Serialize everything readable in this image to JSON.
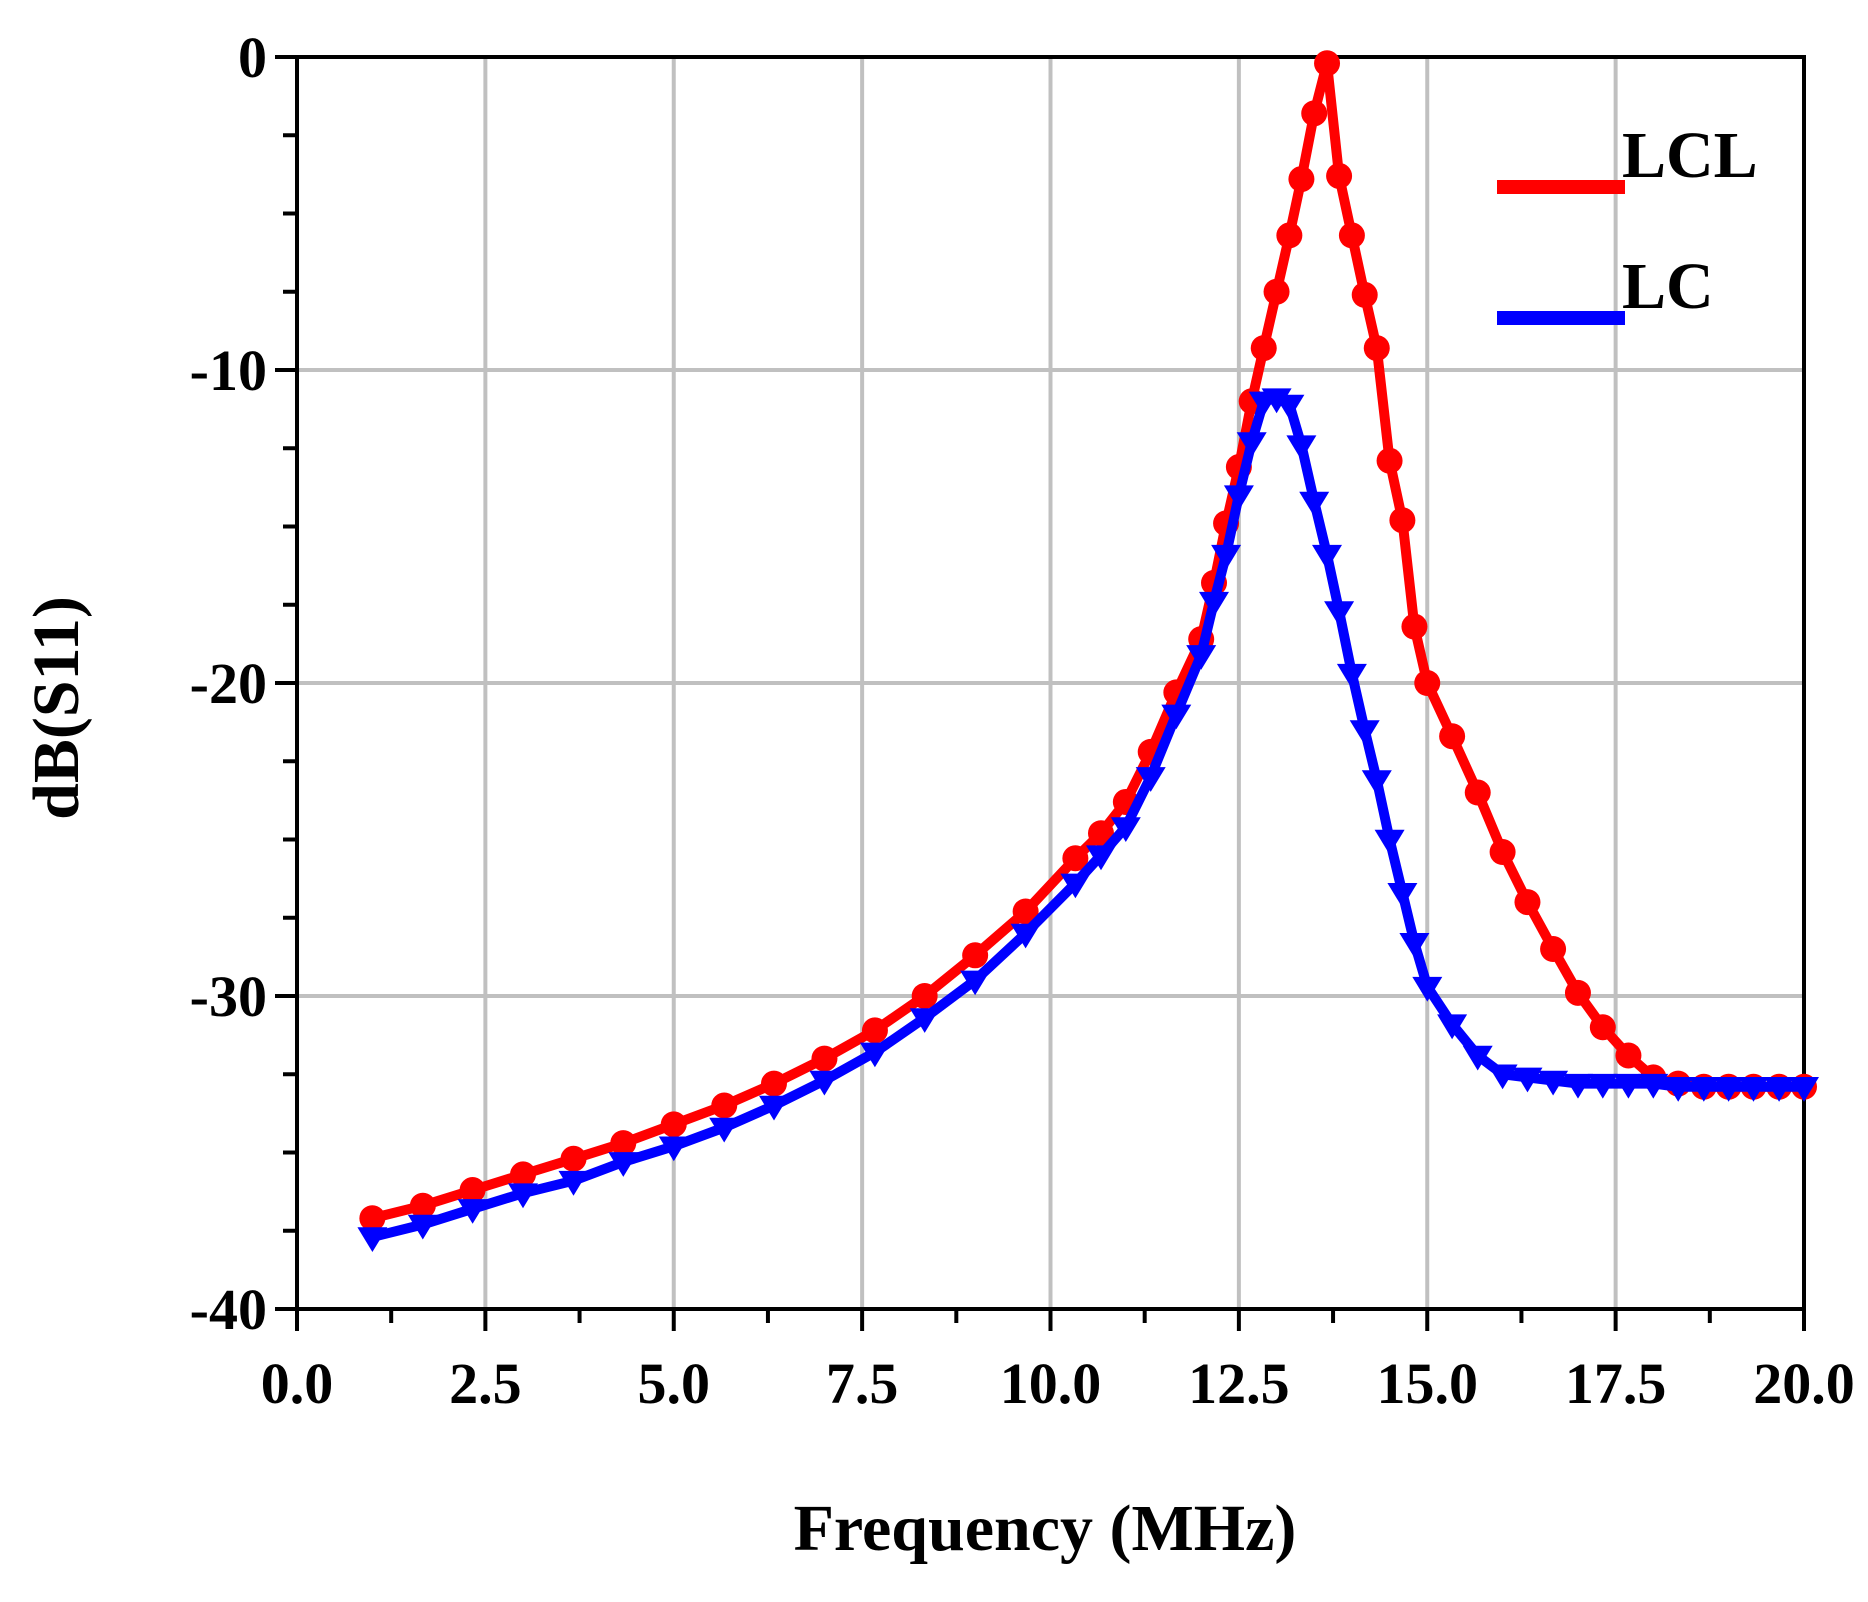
{
  "chart_data": {
    "type": "line",
    "title": "",
    "xlabel": "Frequency (MHz)",
    "ylabel": "dB(S11)",
    "xlim": [
      0,
      20
    ],
    "ylim": [
      -40,
      0
    ],
    "x_ticks": [
      "0.0",
      "2.5",
      "5.0",
      "7.5",
      "10.0",
      "12.5",
      "15.0",
      "17.5",
      "20.0"
    ],
    "y_ticks": [
      "0",
      "-10",
      "-20",
      "-30",
      "-40"
    ],
    "grid": true,
    "legend_position": "top-right",
    "series": [
      {
        "name": "LCL",
        "color": "#ff0000",
        "marker": "circle",
        "x": [
          1.0,
          1.67,
          2.33,
          3.0,
          3.67,
          4.33,
          5.0,
          5.67,
          6.33,
          7.0,
          7.67,
          8.33,
          9.0,
          9.67,
          10.33,
          10.67,
          11.0,
          11.33,
          11.67,
          12.0,
          12.17,
          12.33,
          12.5,
          12.67,
          12.83,
          13.0,
          13.17,
          13.33,
          13.5,
          13.67,
          13.83,
          14.0,
          14.17,
          14.33,
          14.5,
          14.67,
          14.83,
          15.0,
          15.33,
          15.67,
          16.0,
          16.33,
          16.67,
          17.0,
          17.33,
          17.67,
          18.0,
          18.33,
          18.67,
          19.0,
          19.33,
          19.67,
          20.0
        ],
        "y": [
          -37.1,
          -36.7,
          -36.2,
          -35.7,
          -35.2,
          -34.7,
          -34.1,
          -33.5,
          -32.8,
          -32.0,
          -31.1,
          -30.0,
          -28.7,
          -27.3,
          -25.6,
          -24.8,
          -23.8,
          -22.2,
          -20.3,
          -18.6,
          -16.8,
          -14.9,
          -13.1,
          -11.0,
          -9.3,
          -7.5,
          -5.7,
          -3.9,
          -1.8,
          -0.2,
          -3.8,
          -5.7,
          -7.6,
          -9.3,
          -12.9,
          -14.8,
          -18.2,
          -20.0,
          -21.7,
          -23.5,
          -25.4,
          -27.0,
          -28.5,
          -29.9,
          -31.0,
          -31.9,
          -32.6,
          -32.8,
          -32.9,
          -32.9,
          -32.9,
          -32.9,
          -32.9
        ],
        "values_note": "approximate"
      },
      {
        "name": "LC",
        "color": "#0000ff",
        "marker": "triangle-down",
        "x": [
          1.0,
          1.67,
          2.33,
          3.0,
          3.67,
          4.33,
          5.0,
          5.67,
          6.33,
          7.0,
          7.67,
          8.33,
          9.0,
          9.67,
          10.33,
          10.67,
          11.0,
          11.33,
          11.67,
          12.0,
          12.17,
          12.33,
          12.5,
          12.67,
          12.83,
          13.0,
          13.17,
          13.33,
          13.5,
          13.67,
          13.83,
          14.0,
          14.17,
          14.33,
          14.5,
          14.67,
          14.83,
          15.0,
          15.33,
          15.67,
          16.0,
          16.33,
          16.67,
          17.0,
          17.33,
          17.67,
          18.0,
          18.33,
          18.67,
          19.0,
          19.33,
          19.67,
          20.0
        ],
        "y": [
          -37.7,
          -37.3,
          -36.8,
          -36.3,
          -35.9,
          -35.3,
          -34.8,
          -34.2,
          -33.5,
          -32.7,
          -31.8,
          -30.7,
          -29.5,
          -28.0,
          -26.4,
          -25.5,
          -24.6,
          -23.0,
          -21.0,
          -19.1,
          -17.4,
          -15.9,
          -14.0,
          -12.3,
          -11.0,
          -10.9,
          -11.1,
          -12.4,
          -14.2,
          -15.9,
          -17.7,
          -19.7,
          -21.5,
          -23.1,
          -25.0,
          -26.7,
          -28.3,
          -29.7,
          -30.9,
          -31.9,
          -32.5,
          -32.6,
          -32.7,
          -32.8,
          -32.8,
          -32.8,
          -32.8,
          -32.9,
          -32.9,
          -32.9,
          -32.9,
          -32.9,
          -32.9
        ],
        "values_note": "approximate"
      }
    ]
  }
}
